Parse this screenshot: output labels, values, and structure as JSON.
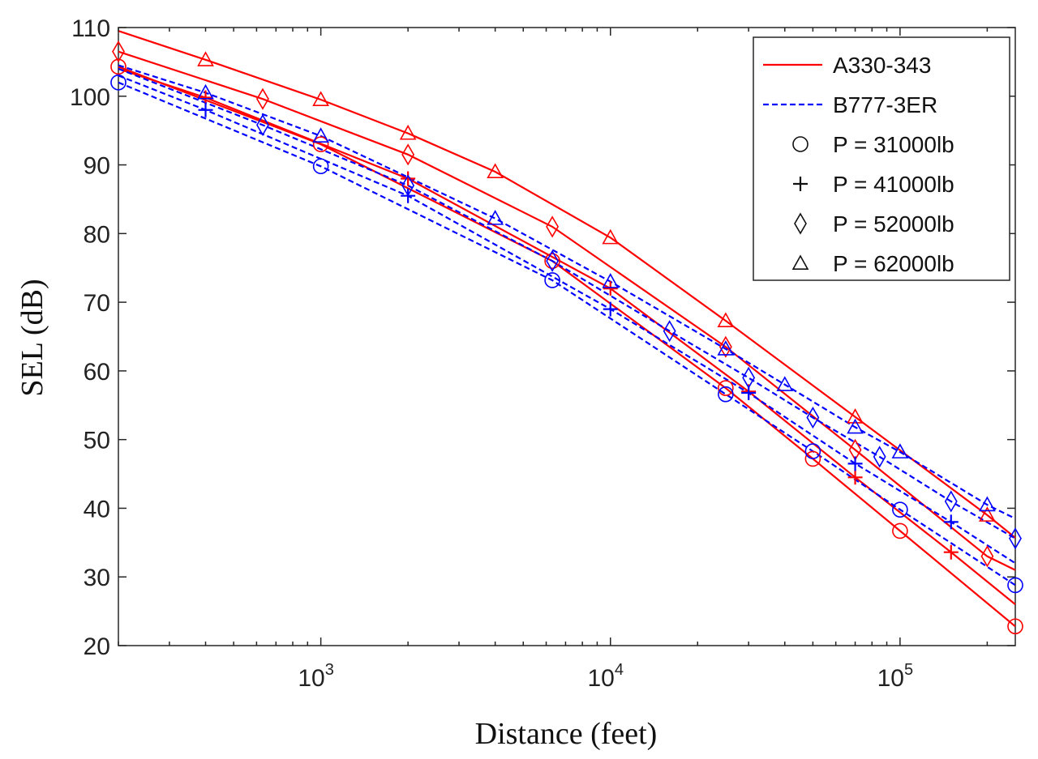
{
  "chart_data": {
    "type": "line",
    "title": "",
    "xlabel": "Distance (feet)",
    "ylabel": "SEL (dB)",
    "xscale": "log",
    "xlim": [
      200,
      250000
    ],
    "ylim": [
      20,
      110
    ],
    "yticks": [
      20,
      30,
      40,
      50,
      60,
      70,
      80,
      90,
      100,
      110
    ],
    "yticklabels": [
      "20",
      "30",
      "40",
      "50",
      "60",
      "70",
      "80",
      "90",
      "100",
      "110"
    ],
    "xticks": [
      {
        "value": 1000,
        "base": "10",
        "exp": "3"
      },
      {
        "value": 10000,
        "base": "10",
        "exp": "4"
      },
      {
        "value": 100000,
        "base": "10",
        "exp": "5"
      }
    ],
    "grid": false,
    "legend_position": "top-right",
    "legend": {
      "aircraft": [
        {
          "label": "A330-343",
          "color": "#ff0000",
          "style": "solid"
        },
        {
          "label": "B777-3ER",
          "color": "#0000ff",
          "style": "dashed"
        }
      ],
      "markers": [
        {
          "label": "P = 31000lb",
          "marker": "circle"
        },
        {
          "label": "P = 41000lb",
          "marker": "plus"
        },
        {
          "label": "P = 52000lb",
          "marker": "diamond"
        },
        {
          "label": "P = 62000lb",
          "marker": "triangle"
        }
      ]
    },
    "series": [
      {
        "name": "A330-343 P = 31000lb",
        "aircraft": "A330-343",
        "marker": "circle",
        "color": "#ff0000",
        "style": "solid",
        "x": [
          200,
          1000,
          6300,
          25000,
          50000,
          100000,
          250000
        ],
        "y": [
          104.3,
          93,
          76,
          57.5,
          47.2,
          36.7,
          22.8
        ],
        "marked": [
          true,
          true,
          true,
          true,
          true,
          true,
          true
        ]
      },
      {
        "name": "A330-343 P = 41000lb",
        "aircraft": "A330-343",
        "marker": "plus",
        "color": "#ff0000",
        "style": "solid",
        "x": [
          200,
          400,
          2000,
          10000,
          30000,
          70000,
          150000,
          250000
        ],
        "y": [
          104,
          99.8,
          88,
          72,
          57,
          44.5,
          33.6,
          26
        ],
        "marked": [
          false,
          true,
          true,
          true,
          true,
          true,
          true,
          false
        ]
      },
      {
        "name": "A330-343 P = 52000lb",
        "aircraft": "A330-343",
        "marker": "diamond",
        "color": "#ff0000",
        "style": "solid",
        "x": [
          200,
          630,
          2000,
          6300,
          25000,
          70000,
          200000,
          250000
        ],
        "y": [
          106.5,
          99.6,
          91.5,
          81,
          63.5,
          48.5,
          33,
          31
        ],
        "marked": [
          true,
          true,
          true,
          true,
          true,
          true,
          true,
          false
        ]
      },
      {
        "name": "A330-343 P = 62000lb",
        "aircraft": "A330-343",
        "marker": "triangle",
        "color": "#ff0000",
        "style": "solid",
        "x": [
          200,
          400,
          1000,
          2000,
          4000,
          10000,
          25000,
          70000,
          200000,
          250000
        ],
        "y": [
          109.5,
          105.3,
          99.5,
          94.6,
          89,
          79.4,
          67.3,
          53.3,
          39,
          35.7
        ],
        "marked": [
          false,
          true,
          true,
          true,
          true,
          true,
          true,
          true,
          true,
          false
        ]
      },
      {
        "name": "B777-3ER P = 31000lb",
        "aircraft": "B777-3ER",
        "marker": "circle",
        "color": "#0000ff",
        "style": "dashed",
        "x": [
          200,
          1000,
          6300,
          25000,
          50000,
          100000,
          250000
        ],
        "y": [
          102,
          89.8,
          73.2,
          56.6,
          48.3,
          39.8,
          28.8
        ],
        "marked": [
          true,
          true,
          true,
          true,
          true,
          true,
          true
        ]
      },
      {
        "name": "B777-3ER P = 41000lb",
        "aircraft": "B777-3ER",
        "marker": "plus",
        "color": "#0000ff",
        "style": "dashed",
        "x": [
          200,
          400,
          2000,
          10000,
          30000,
          70000,
          150000,
          250000
        ],
        "y": [
          103,
          98,
          85.5,
          69,
          56.8,
          46.5,
          38,
          32
        ],
        "marked": [
          false,
          true,
          true,
          true,
          true,
          true,
          true,
          false
        ]
      },
      {
        "name": "B777-3ER P = 52000lb",
        "aircraft": "B777-3ER",
        "marker": "diamond",
        "color": "#0000ff",
        "style": "dashed",
        "x": [
          200,
          630,
          2000,
          6300,
          16000,
          30000,
          50000,
          85000,
          150000,
          250000
        ],
        "y": [
          104,
          95.8,
          87,
          76,
          65.8,
          59,
          53.2,
          47.5,
          41,
          35.6
        ],
        "marked": [
          false,
          true,
          true,
          true,
          true,
          true,
          true,
          true,
          true,
          true
        ]
      },
      {
        "name": "B777-3ER P = 62000lb",
        "aircraft": "B777-3ER",
        "marker": "triangle",
        "color": "#0000ff",
        "style": "dashed",
        "x": [
          200,
          400,
          1000,
          4000,
          10000,
          25000,
          40000,
          70000,
          100000,
          200000,
          250000
        ],
        "y": [
          104.5,
          100.5,
          94.2,
          82.2,
          73,
          63.2,
          58,
          51.8,
          48.2,
          40.5,
          38.5
        ],
        "marked": [
          false,
          true,
          true,
          true,
          true,
          true,
          true,
          true,
          true,
          true,
          false
        ]
      }
    ]
  }
}
